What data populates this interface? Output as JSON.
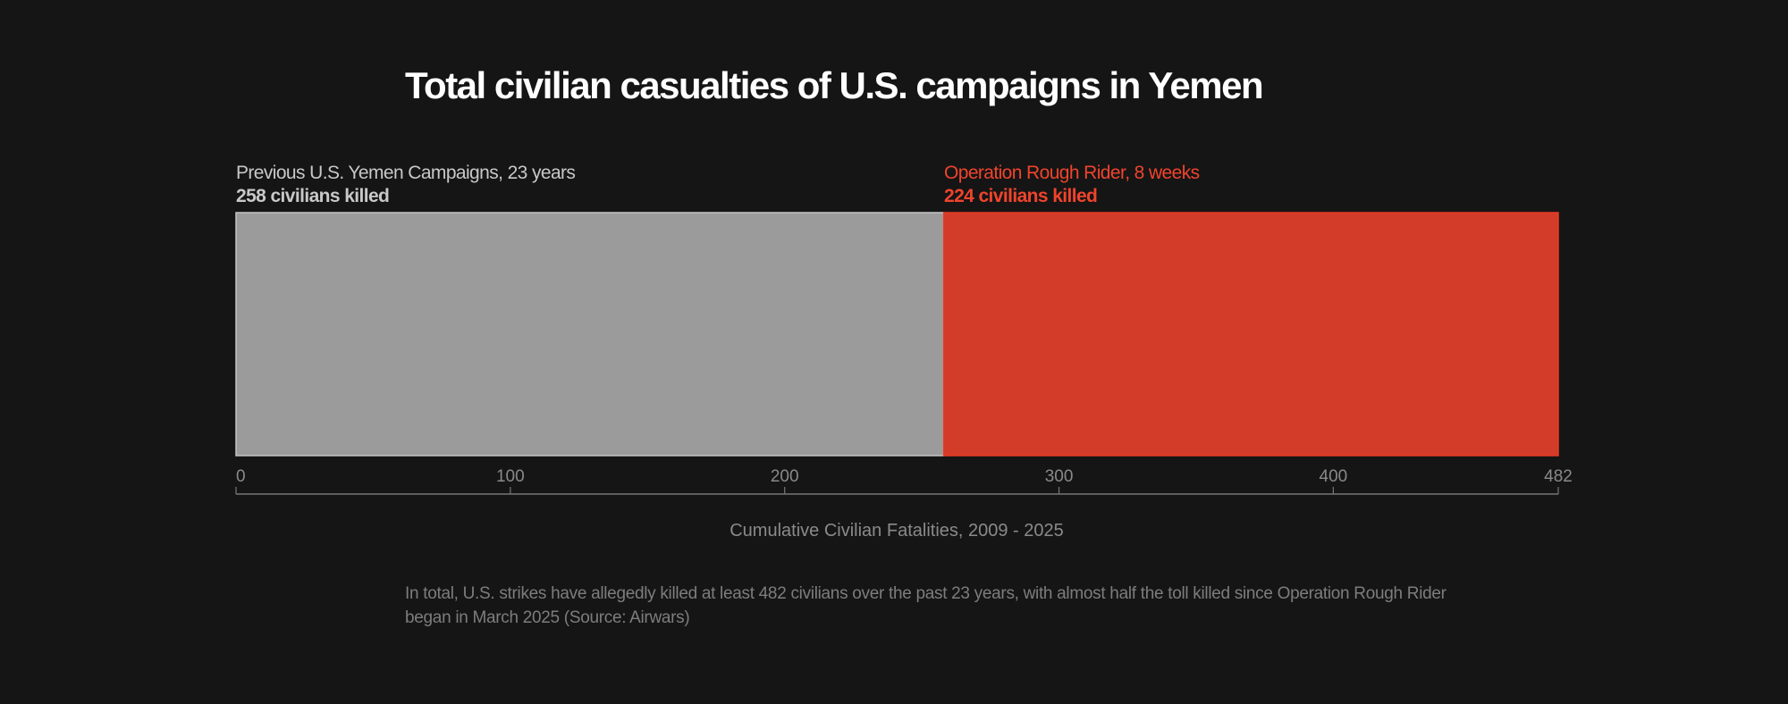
{
  "chart_data": {
    "type": "bar",
    "orientation": "horizontal-stacked",
    "title": "Total civilian casualties of U.S. campaigns in Yemen",
    "xlabel": "Cumulative Civilian Fatalities, 2009 - 2025",
    "xlim": [
      0,
      482
    ],
    "ticks": [
      0,
      100,
      200,
      300,
      400,
      482
    ],
    "series": [
      {
        "name": "Previous U.S. Yemen Campaigns, 23 years",
        "value": 258,
        "value_label": "258 civilians killed",
        "color": "#9b9b9b",
        "label_color": "#c8c8c8"
      },
      {
        "name": "Operation Rough Rider, 8 weeks",
        "value": 224,
        "value_label": "224 civilians killed",
        "color": "#d33c29",
        "label_color": "#f0442c"
      }
    ],
    "note": "In total, U.S. strikes have allegedly killed at least 482 civilians over the past 23 years, with almost half the toll killed since Operation Rough Rider began in March 2025 (Source: Airwars)"
  }
}
